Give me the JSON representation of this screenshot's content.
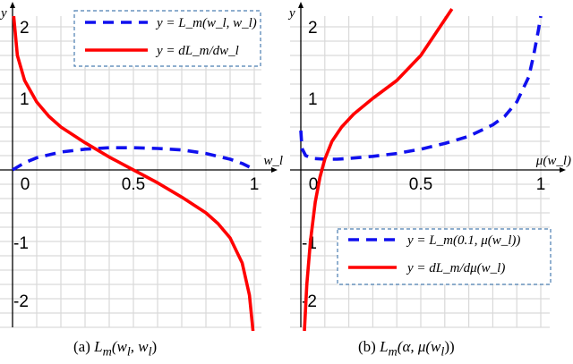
{
  "chart_data": [
    {
      "type": "line",
      "panel": "a",
      "caption": "(a) L_m(w_l, w_l)",
      "xlabel": "w_l",
      "ylabel": "y",
      "xlim": [
        0,
        1.05
      ],
      "ylim": [
        -2.2,
        2.1
      ],
      "grid": true,
      "x_ticks": [
        {
          "value": 0,
          "label": "0"
        },
        {
          "value": 0.5,
          "label": "0.5"
        },
        {
          "value": 1,
          "label": "1"
        }
      ],
      "y_ticks": [
        {
          "value": 2,
          "label": "2"
        },
        {
          "value": 1,
          "label": "1"
        },
        {
          "value": -1,
          "label": "-1"
        },
        {
          "value": -2,
          "label": "-2"
        }
      ],
      "legend_position": "upper right",
      "series": [
        {
          "name": "y = L_m(w_l, w_l)",
          "color": "#1010ee",
          "style": "dashed",
          "x": [
            0,
            0.05,
            0.1,
            0.2,
            0.3,
            0.4,
            0.5,
            0.6,
            0.7,
            0.8,
            0.9,
            0.95,
            0.98
          ],
          "y": [
            0,
            0.1,
            0.17,
            0.25,
            0.29,
            0.31,
            0.31,
            0.3,
            0.28,
            0.23,
            0.15,
            0.09,
            0.04
          ]
        },
        {
          "name": "y = dL_m/dw_l",
          "color": "#ff0000",
          "style": "solid",
          "x": [
            0.005,
            0.02,
            0.05,
            0.1,
            0.15,
            0.2,
            0.3,
            0.4,
            0.5,
            0.6,
            0.7,
            0.8,
            0.85,
            0.9,
            0.95,
            0.98,
            0.995
          ],
          "y": [
            2.15,
            1.6,
            1.25,
            0.95,
            0.75,
            0.6,
            0.38,
            0.18,
            0.0,
            -0.18,
            -0.38,
            -0.6,
            -0.75,
            -0.95,
            -1.3,
            -1.75,
            -2.25
          ]
        }
      ]
    },
    {
      "type": "line",
      "panel": "b",
      "caption": "(b) L_m(α, μ(w_l))",
      "xlabel": "μ(w_l)",
      "ylabel": "y",
      "xlim": [
        0,
        1.05
      ],
      "ylim": [
        -2.2,
        2.1
      ],
      "grid": true,
      "x_ticks": [
        {
          "value": 0,
          "label": "0"
        },
        {
          "value": 0.5,
          "label": "0.5"
        },
        {
          "value": 1,
          "label": "1"
        }
      ],
      "y_ticks": [
        {
          "value": 2,
          "label": "2"
        },
        {
          "value": 1,
          "label": "1"
        },
        {
          "value": -1,
          "label": "-1"
        },
        {
          "value": -2,
          "label": "-2"
        }
      ],
      "legend_position": "lower right",
      "series": [
        {
          "name": "y = L_m(0.1, μ(w_l))",
          "color": "#1010ee",
          "style": "dashed",
          "x": [
            0.0,
            0.005,
            0.02,
            0.05,
            0.1,
            0.15,
            0.2,
            0.3,
            0.4,
            0.5,
            0.6,
            0.7,
            0.8,
            0.85,
            0.9,
            0.95,
            0.97,
            0.99,
            1.0
          ],
          "y": [
            0.55,
            0.3,
            0.2,
            0.16,
            0.15,
            0.15,
            0.16,
            0.19,
            0.23,
            0.29,
            0.37,
            0.47,
            0.63,
            0.75,
            0.95,
            1.3,
            1.6,
            1.95,
            2.15
          ]
        },
        {
          "name": "y = dL_m/dμ(w_l)",
          "color": "#ff0000",
          "style": "solid",
          "x": [
            0.015,
            0.025,
            0.04,
            0.06,
            0.08,
            0.1,
            0.13,
            0.17,
            0.22,
            0.3,
            0.4,
            0.5,
            0.55,
            0.6,
            0.63
          ],
          "y": [
            -2.25,
            -1.6,
            -1.0,
            -0.45,
            -0.1,
            0.15,
            0.4,
            0.6,
            0.78,
            1.0,
            1.25,
            1.6,
            1.85,
            2.1,
            2.25
          ]
        }
      ]
    }
  ],
  "captions": {
    "a_prefix": "(a) ",
    "a_math": "L",
    "a_sub": "m",
    "a_args": "(w",
    "a_sub2": "l",
    "a_mid": ", w",
    "a_sub3": "l",
    "a_end": ")",
    "b_prefix": "(b) ",
    "b_math": "L",
    "b_sub": "m",
    "b_args": "(α, μ(w",
    "b_sub2": "l",
    "b_end": "))"
  }
}
